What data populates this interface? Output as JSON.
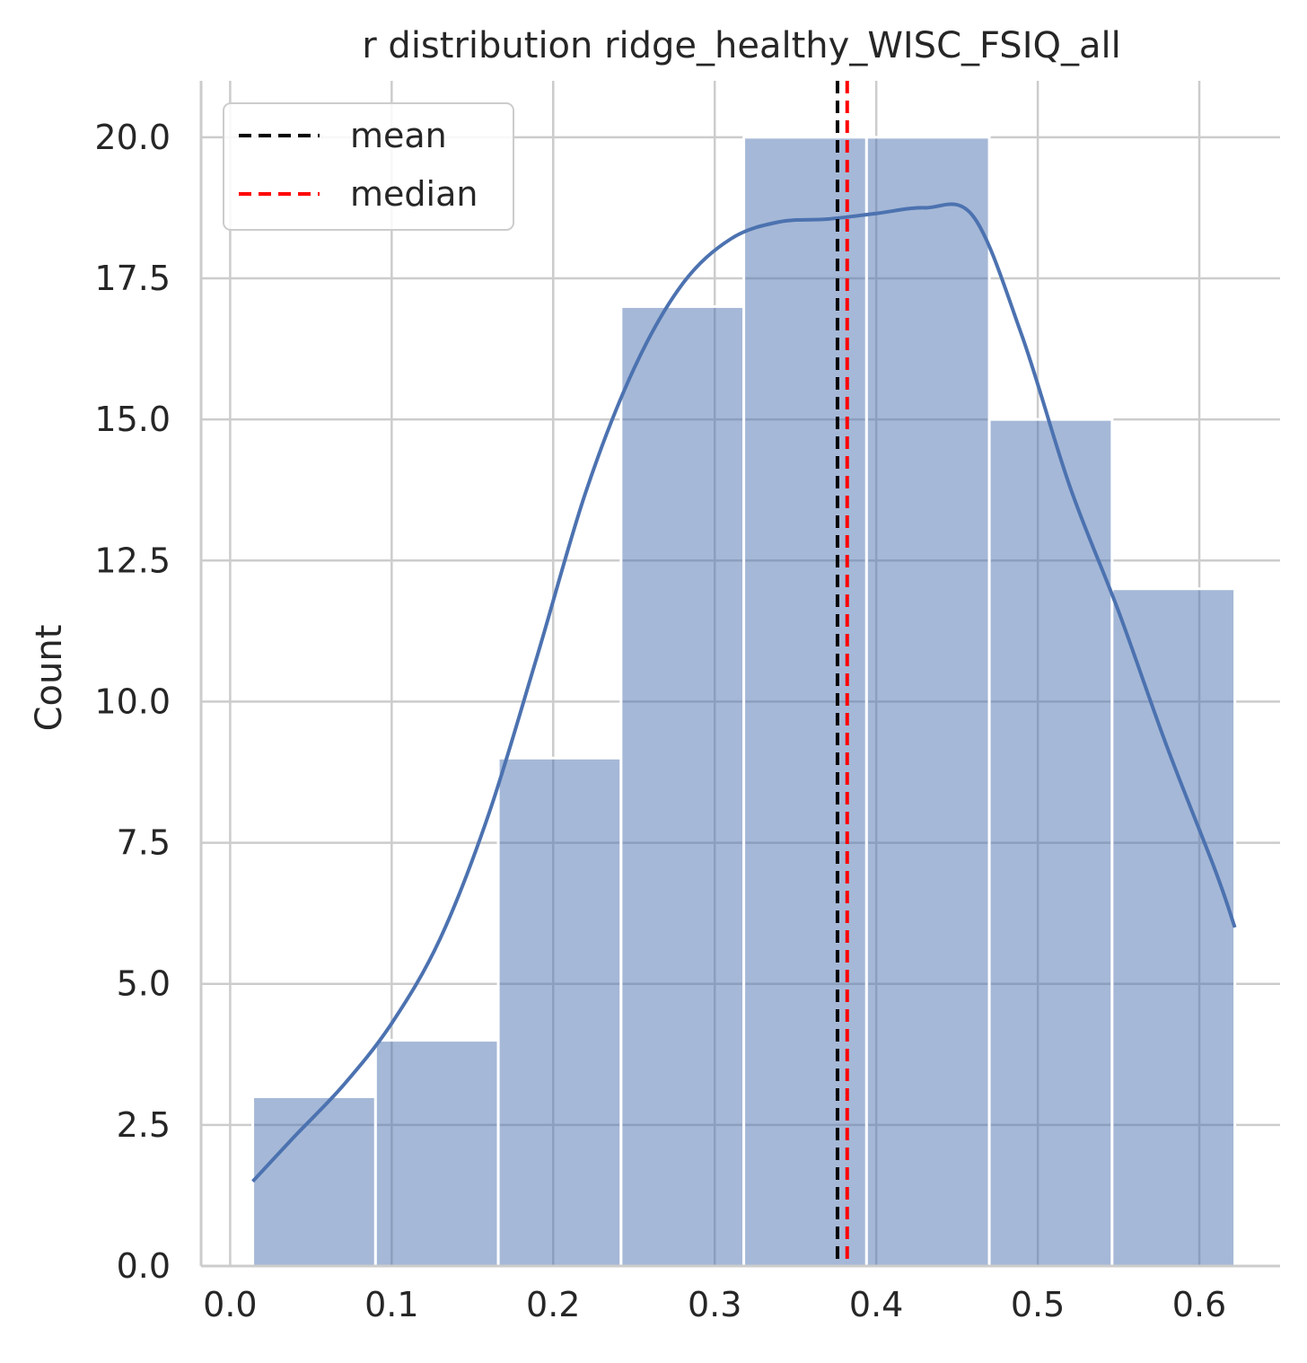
{
  "chart_data": {
    "type": "bar",
    "title": "r distribution ridge_healthy_WISC_FSIQ_all",
    "xlabel": "",
    "ylabel": "Count",
    "xlim": [
      -0.018,
      0.65
    ],
    "ylim": [
      0,
      21
    ],
    "grid": true,
    "legend_position": "top-left",
    "x_ticks": [
      {
        "value": 0.0,
        "label": "0.0"
      },
      {
        "value": 0.1,
        "label": "0.1"
      },
      {
        "value": 0.2,
        "label": "0.2"
      },
      {
        "value": 0.3,
        "label": "0.3"
      },
      {
        "value": 0.4,
        "label": "0.4"
      },
      {
        "value": 0.5,
        "label": "0.5"
      },
      {
        "value": 0.6,
        "label": "0.6"
      }
    ],
    "y_ticks": [
      {
        "value": 0.0,
        "label": "0.0"
      },
      {
        "value": 2.5,
        "label": "2.5"
      },
      {
        "value": 5.0,
        "label": "5.0"
      },
      {
        "value": 7.5,
        "label": "7.5"
      },
      {
        "value": 10.0,
        "label": "10.0"
      },
      {
        "value": 12.5,
        "label": "12.5"
      },
      {
        "value": 15.0,
        "label": "15.0"
      },
      {
        "value": 17.5,
        "label": "17.5"
      },
      {
        "value": 20.0,
        "label": "20.0"
      }
    ],
    "bins": [
      {
        "x0": 0.014,
        "x1": 0.09,
        "count": 3
      },
      {
        "x0": 0.09,
        "x1": 0.166,
        "count": 4
      },
      {
        "x0": 0.166,
        "x1": 0.242,
        "count": 9
      },
      {
        "x0": 0.242,
        "x1": 0.318,
        "count": 17
      },
      {
        "x0": 0.318,
        "x1": 0.394,
        "count": 20
      },
      {
        "x0": 0.394,
        "x1": 0.47,
        "count": 20
      },
      {
        "x0": 0.47,
        "x1": 0.546,
        "count": 15
      },
      {
        "x0": 0.546,
        "x1": 0.622,
        "count": 12
      }
    ],
    "kde": {
      "x": [
        0.014,
        0.04,
        0.07,
        0.1,
        0.13,
        0.16,
        0.19,
        0.22,
        0.25,
        0.28,
        0.31,
        0.34,
        0.37,
        0.4,
        0.43,
        0.46,
        0.49,
        0.52,
        0.55,
        0.58,
        0.61,
        0.622
      ],
      "y": [
        1.5,
        2.3,
        3.2,
        4.3,
        5.8,
        8.0,
        10.8,
        13.7,
        15.9,
        17.4,
        18.2,
        18.5,
        18.55,
        18.65,
        18.75,
        18.6,
        16.5,
        13.8,
        11.6,
        9.2,
        7.0,
        6.0
      ]
    },
    "vlines": [
      {
        "name": "mean",
        "x": 0.376,
        "color": "#000000"
      },
      {
        "name": "median",
        "x": 0.382,
        "color": "#ff0000"
      }
    ],
    "colors": {
      "bar_fill": "#a5b7d6",
      "bar_stroke": "#ffffff",
      "kde_line": "#4c72b0",
      "grid": "#cccccc",
      "axis": "#cccccc"
    }
  }
}
